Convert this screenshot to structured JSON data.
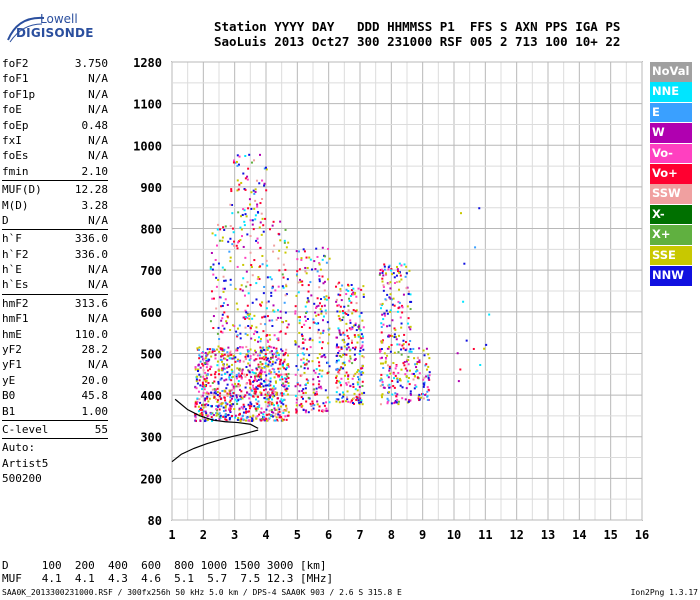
{
  "logo": {
    "line1": "Lowell",
    "line2": "DIGISONDE"
  },
  "header": {
    "row1": "Station YYYY DAY   DDD HHMMSS P1  FFS S AXN PPS IGA PS",
    "row2": "SaoLuis 2013 Oct27 300 231000 RSF 005 2 713 100 10+ 22"
  },
  "params": {
    "group1": [
      {
        "k": "foF2",
        "v": "3.750"
      },
      {
        "k": "foF1",
        "v": "N/A"
      },
      {
        "k": "foF1p",
        "v": "N/A"
      },
      {
        "k": "foE",
        "v": "N/A"
      },
      {
        "k": "foEp",
        "v": "0.48"
      },
      {
        "k": "fxI",
        "v": "N/A"
      },
      {
        "k": "foEs",
        "v": "N/A"
      },
      {
        "k": "fmin",
        "v": "2.10"
      }
    ],
    "group2": [
      {
        "k": "MUF(D)",
        "v": "12.28"
      },
      {
        "k": "M(D)",
        "v": "3.28"
      },
      {
        "k": "D",
        "v": "N/A"
      }
    ],
    "group3": [
      {
        "k": "h`F",
        "v": "336.0"
      },
      {
        "k": "h`F2",
        "v": "336.0"
      },
      {
        "k": "h`E",
        "v": "N/A"
      },
      {
        "k": "h`Es",
        "v": "N/A"
      }
    ],
    "group4": [
      {
        "k": "hmF2",
        "v": "313.6"
      },
      {
        "k": "hmF1",
        "v": "N/A"
      },
      {
        "k": "hmE",
        "v": "110.0"
      },
      {
        "k": "yF2",
        "v": "28.2"
      },
      {
        "k": "yF1",
        "v": "N/A"
      },
      {
        "k": "yE",
        "v": "20.0"
      },
      {
        "k": "B0",
        "v": "45.8"
      },
      {
        "k": "B1",
        "v": "1.00"
      }
    ],
    "group5": [
      {
        "k": "C-level",
        "v": "55"
      }
    ],
    "auto": [
      "Auto:",
      "Artist5",
      "500200"
    ]
  },
  "legend": [
    {
      "label": "NoVal",
      "color": "#a0a0a0"
    },
    {
      "label": "NNE",
      "color": "#00e5ff"
    },
    {
      "label": "E",
      "color": "#3aa0ff"
    },
    {
      "label": "W",
      "color": "#b000b0"
    },
    {
      "label": "Vo-",
      "color": "#ff40c0"
    },
    {
      "label": "Vo+",
      "color": "#ff0030"
    },
    {
      "label": "SSW",
      "color": "#f0a0a0"
    },
    {
      "label": "X-",
      "color": "#007000"
    },
    {
      "label": "X+",
      "color": "#60b040"
    },
    {
      "label": "SSE",
      "color": "#c8c800"
    },
    {
      "label": "NNW",
      "color": "#1010e0"
    }
  ],
  "bottom": {
    "row1": "D     100  200  400  600  800 1000 1500 3000 [km]",
    "row2": "MUF   4.1  4.1  4.3  4.6  5.1  5.7  7.5 12.3 [MHz]"
  },
  "footer": {
    "left": "SAA0K_2013300231000.RSF / 300fx256h 50 kHz 5.0 km / DPS-4 SAA0K 903 / 2.6 S 315.8 E",
    "right": "Ion2Png 1.3.17"
  },
  "chart_data": {
    "type": "scatter",
    "x_ticks": [
      "1",
      "2",
      "3",
      "4",
      "5",
      "6",
      "7",
      "8",
      "9",
      "10",
      "11",
      "12",
      "13",
      "14",
      "15",
      "16"
    ],
    "y_ticks": [
      "80",
      "200",
      "300",
      "400",
      "500",
      "600",
      "700",
      "800",
      "900",
      "1000",
      "1100",
      "1280"
    ],
    "xlim": [
      1,
      16
    ],
    "ylim": [
      80,
      1280
    ],
    "y_scale": "nonlinear (virtual height, km)",
    "grid": true,
    "trace": {
      "x": [
        1.0,
        1.3,
        1.7,
        2.1,
        2.5,
        2.9,
        3.3,
        3.6,
        3.75
      ],
      "y": [
        240,
        258,
        272,
        283,
        292,
        300,
        307,
        313,
        316
      ]
    },
    "trace2": {
      "x": [
        1.1,
        1.5,
        1.9,
        2.3,
        2.7,
        3.1,
        3.5,
        3.75
      ],
      "y": [
        390,
        365,
        350,
        340,
        336,
        334,
        330,
        320
      ]
    },
    "echo_clusters": [
      {
        "x_range": [
          1.7,
          4.7
        ],
        "y_range": [
          340,
          520
        ],
        "density": "high"
      },
      {
        "x_range": [
          2.2,
          4.7
        ],
        "y_range": [
          530,
          820
        ],
        "density": "medium"
      },
      {
        "x_range": [
          2.8,
          4.0
        ],
        "y_range": [
          820,
          980
        ],
        "density": "low"
      },
      {
        "x_range": [
          4.9,
          6.0
        ],
        "y_range": [
          360,
          760
        ],
        "density": "medium"
      },
      {
        "x_range": [
          6.2,
          7.1
        ],
        "y_range": [
          380,
          680
        ],
        "density": "medium"
      },
      {
        "x_range": [
          7.6,
          8.6
        ],
        "y_range": [
          380,
          720
        ],
        "density": "medium"
      },
      {
        "x_range": [
          8.6,
          9.2
        ],
        "y_range": [
          390,
          520
        ],
        "density": "low"
      },
      {
        "x_range": [
          10.0,
          11.2
        ],
        "y_range": [
          390,
          880
        ],
        "density": "sparse"
      }
    ]
  }
}
